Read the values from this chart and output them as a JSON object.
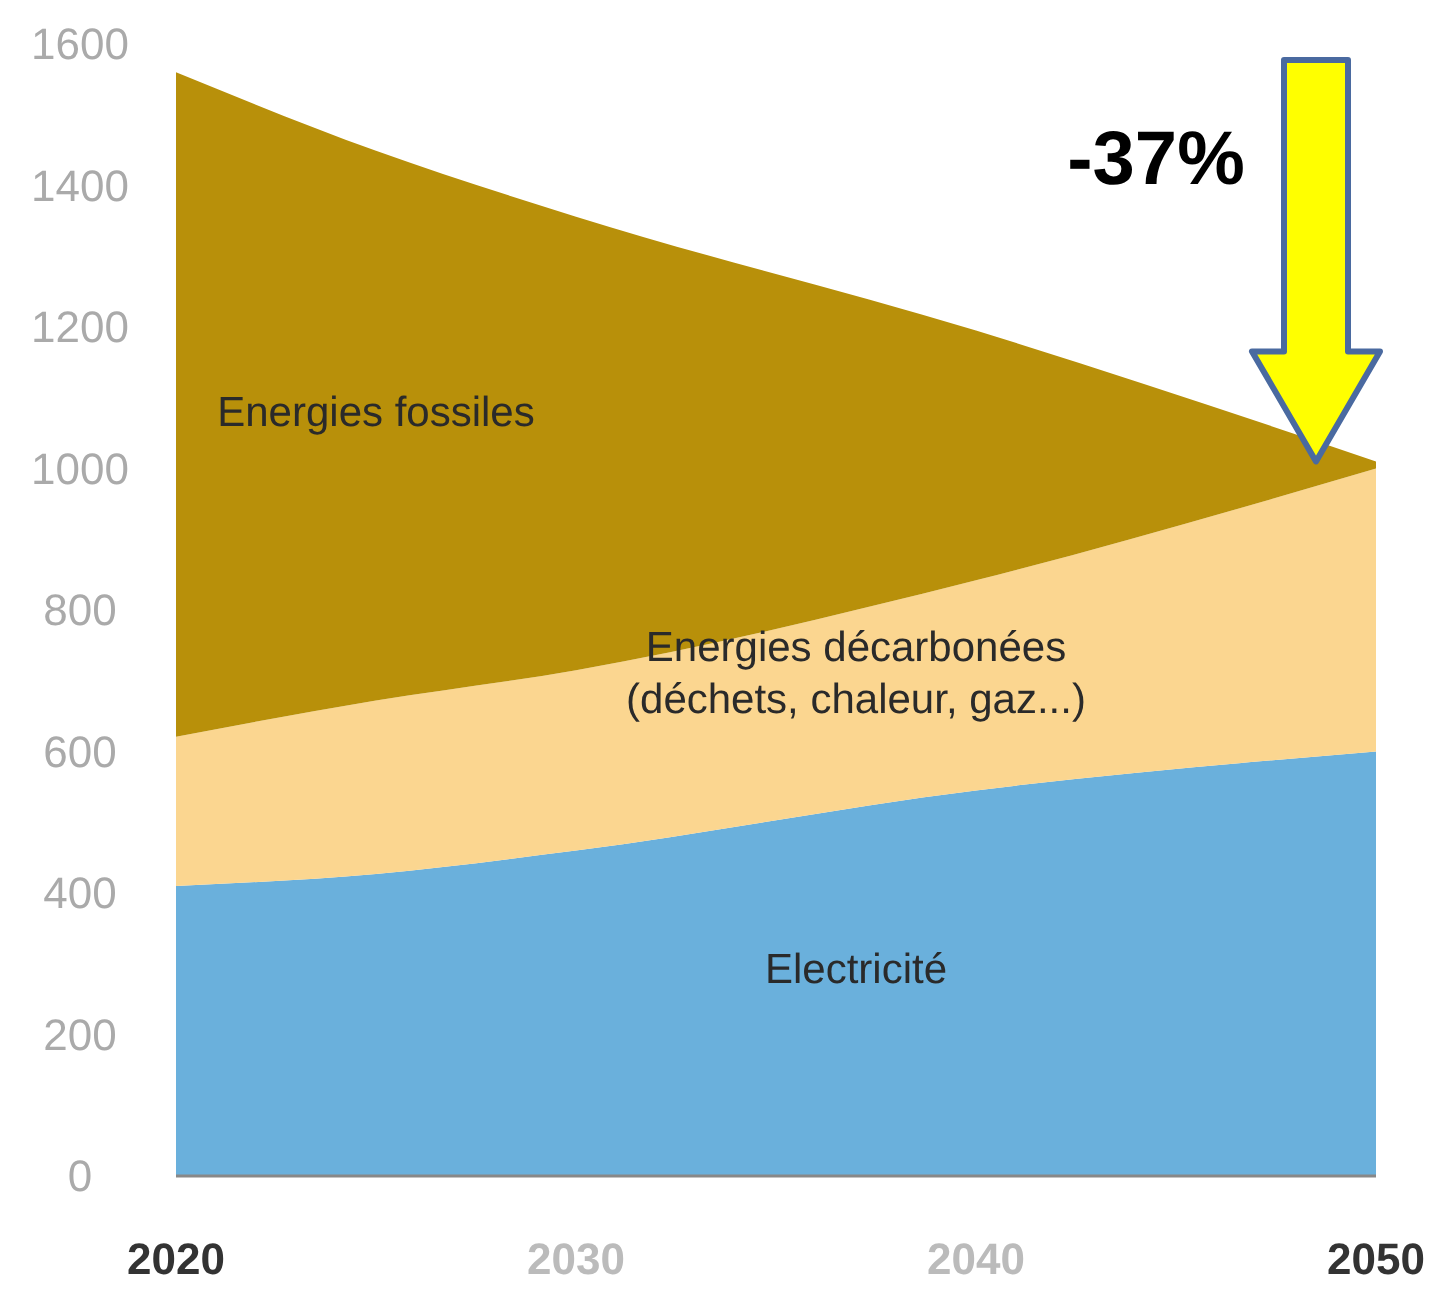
{
  "chart_data": {
    "type": "area",
    "stacked": true,
    "x": [
      2020,
      2025,
      2030,
      2040,
      2050
    ],
    "series": [
      {
        "name": "Electricité",
        "color": "#6ab0dc",
        "values": [
          410,
          427,
          460,
          545,
          600
        ]
      },
      {
        "name": "Energies décarbonées (déchets, chaleur, gaz...)",
        "color": "#fbd690",
        "values": [
          211,
          245,
          255,
          297,
          400
        ]
      },
      {
        "name": "Energies fossiles",
        "color": "#b8900a",
        "values": [
          939,
          777,
          641,
          353,
          10
        ]
      }
    ],
    "xlim": [
      2020,
      2050
    ],
    "xticks": [
      2020,
      2030,
      2040,
      2050
    ],
    "ylim": [
      0,
      1600
    ],
    "yticks": [
      0,
      200,
      400,
      600,
      800,
      1000,
      1200,
      1400,
      1600
    ],
    "grid": false,
    "annotations": [
      "-37%"
    ]
  }
}
